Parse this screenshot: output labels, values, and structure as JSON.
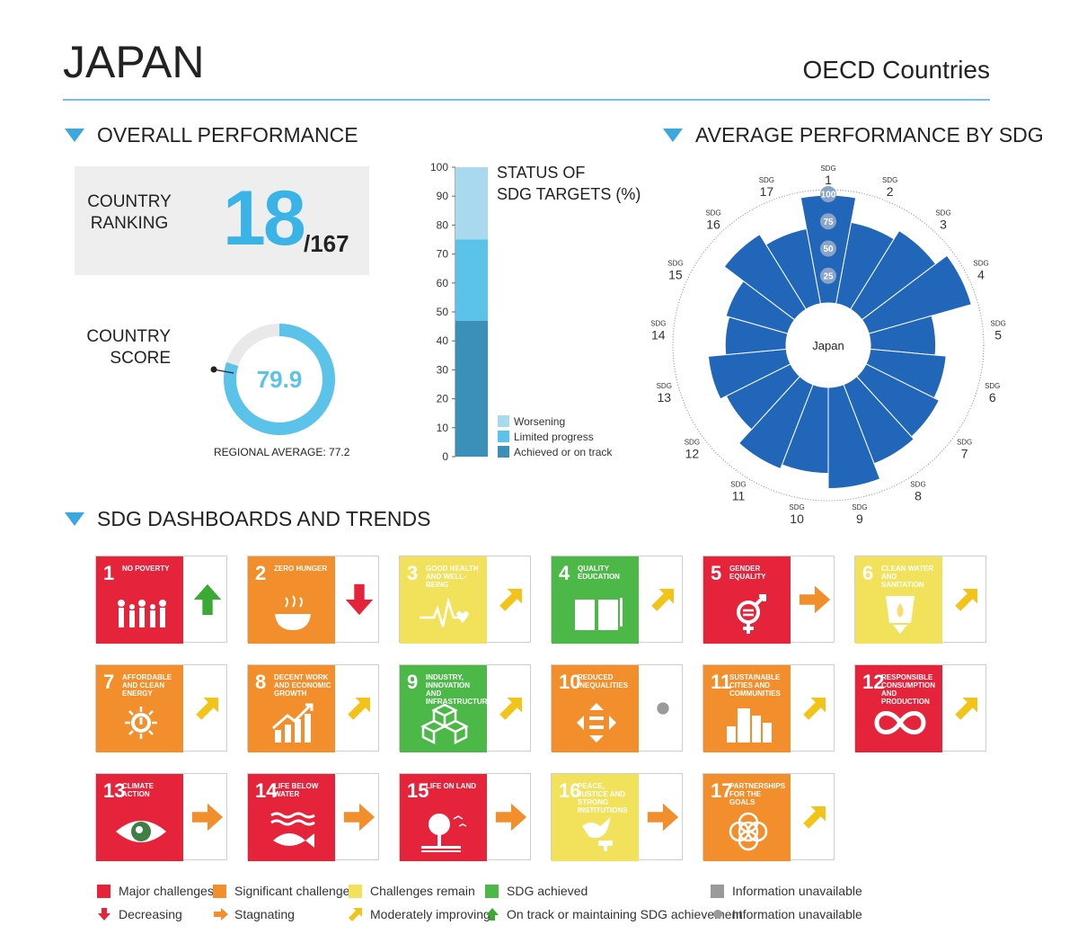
{
  "header": {
    "country": "JAPAN",
    "group": "OECD Countries"
  },
  "sections": {
    "overall": "OVERALL PERFORMANCE",
    "average": "AVERAGE PERFORMANCE BY SDG",
    "dashboards": "SDG DASHBOARDS AND TRENDS"
  },
  "ranking": {
    "label_line1": "COUNTRY",
    "label_line2": "RANKING",
    "rank": "18",
    "total": "/167"
  },
  "score": {
    "label_line1": "COUNTRY",
    "label_line2": "SCORE",
    "value": "79.9",
    "value_num": 79.9,
    "regional": "REGIONAL AVERAGE: 77.2",
    "ring_color": "#5bc2ea"
  },
  "status_chart": {
    "title_line1": "STATUS OF",
    "title_line2": "SDG TARGETS (%)",
    "ticks": [
      "0",
      "10",
      "20",
      "30",
      "40",
      "50",
      "60",
      "70",
      "80",
      "90",
      "100"
    ],
    "segments": [
      {
        "name": "Achieved or on track",
        "value": 47,
        "color": "#3a90b8"
      },
      {
        "name": "Limited progress",
        "value": 28,
        "color": "#5bc2ea"
      },
      {
        "name": "Worsening",
        "value": 25,
        "color": "#a8d9ef"
      }
    ]
  },
  "chart_data": {
    "type": "bar",
    "subtype": "radial",
    "center_label": "Japan",
    "categories": [
      "SDG 1",
      "SDG 2",
      "SDG 3",
      "SDG 4",
      "SDG 5",
      "SDG 6",
      "SDG 7",
      "SDG 8",
      "SDG 9",
      "SDG 10",
      "SDG 11",
      "SDG 12",
      "SDG 13",
      "SDG 14",
      "SDG 15",
      "SDG 16",
      "SDG 17"
    ],
    "sdg_prefix": "SDG",
    "sdg_numbers": [
      "1",
      "2",
      "3",
      "4",
      "5",
      "6",
      "7",
      "8",
      "9",
      "10",
      "11",
      "12",
      "13",
      "14",
      "15",
      "16",
      "17"
    ],
    "values": [
      99,
      76,
      85,
      98,
      60,
      70,
      75,
      78,
      93,
      79,
      83,
      66,
      72,
      56,
      59,
      81,
      70
    ],
    "scale_ticks": [
      "25",
      "50",
      "75",
      "100"
    ],
    "ylim": [
      0,
      100
    ],
    "color": "#2166b8"
  },
  "tiles": [
    {
      "num": "1",
      "label": "NO POVERTY",
      "color": "#e5243b",
      "trend": "up"
    },
    {
      "num": "2",
      "label": "ZERO HUNGER",
      "color": "#dda63a",
      "trend": "down"
    },
    {
      "num": "3",
      "label": "GOOD HEALTH AND WELL-BEING",
      "color": "#4c9f38",
      "trend": "moderate"
    },
    {
      "num": "4",
      "label": "QUALITY EDUCATION",
      "color": "#c5192d",
      "trend": "moderate"
    },
    {
      "num": "5",
      "label": "GENDER EQUALITY",
      "color": "#ff3a21",
      "trend": "stagnating"
    },
    {
      "num": "6",
      "label": "CLEAN WATER AND SANITATION",
      "color": "#26bde2",
      "trend": "moderate"
    },
    {
      "num": "7",
      "label": "AFFORDABLE AND CLEAN ENERGY",
      "color": "#fcc30b",
      "trend": "moderate"
    },
    {
      "num": "8",
      "label": "DECENT WORK AND ECONOMIC GROWTH",
      "color": "#a21942",
      "trend": "moderate"
    },
    {
      "num": "9",
      "label": "INDUSTRY, INNOVATION AND INFRASTRUCTURE",
      "color": "#fd6925",
      "trend": "moderate"
    },
    {
      "num": "10",
      "label": "REDUCED INEQUALITIES",
      "color": "#dd1367",
      "trend": "na"
    },
    {
      "num": "11",
      "label": "SUSTAINABLE CITIES AND COMMUNITIES",
      "color": "#fd9d24",
      "trend": "moderate"
    },
    {
      "num": "12",
      "label": "RESPONSIBLE CONSUMPTION AND PRODUCTION",
      "color": "#bf8b2e",
      "trend": "moderate"
    },
    {
      "num": "13",
      "label": "CLIMATE ACTION",
      "color": "#3f7e44",
      "trend": "stagnating"
    },
    {
      "num": "14",
      "label": "LIFE BELOW WATER",
      "color": "#0a97d9",
      "trend": "stagnating"
    },
    {
      "num": "15",
      "label": "LIFE ON LAND",
      "color": "#56c02b",
      "trend": "stagnating"
    },
    {
      "num": "16",
      "label": "PEACE, JUSTICE AND STRONG INSTITUTIONS",
      "color": "#00689d",
      "trend": "stagnating"
    },
    {
      "num": "17",
      "label": "PARTNERSHIPS FOR THE GOALS",
      "color": "#19486a",
      "trend": "moderate"
    }
  ],
  "tile_status_colors": [
    "#e5243b",
    "#f28e2b",
    "#f2e25b",
    "#4cb848",
    "#e5243b",
    "#f2e25b",
    "#f28e2b",
    "#f28e2b",
    "#4cb848",
    "#f28e2b",
    "#f28e2b",
    "#e5243b",
    "#e5243b",
    "#e5243b",
    "#e5243b",
    "#f2e25b",
    "#f28e2b"
  ],
  "legend": {
    "major": "Major challenges",
    "significant": "Significant challenges",
    "remain": "Challenges remain",
    "achieved": "SDG achieved",
    "unavailable": "Information unavailable",
    "decreasing": "Decreasing",
    "stagnating": "Stagnating",
    "moderate": "Moderately improving",
    "ontrack": "On track or maintaining SDG achievement",
    "unavailable2": "Information unavailable"
  },
  "colors": {
    "red": "#e5243b",
    "orange": "#f28e2b",
    "yellow": "#f2e25b",
    "green": "#4cb848",
    "grey": "#9a9a9a",
    "arrow_green": "#3aaa35",
    "arrow_red": "#e5243b",
    "arrow_orange": "#f28e2b",
    "arrow_yellow": "#f2c419"
  }
}
